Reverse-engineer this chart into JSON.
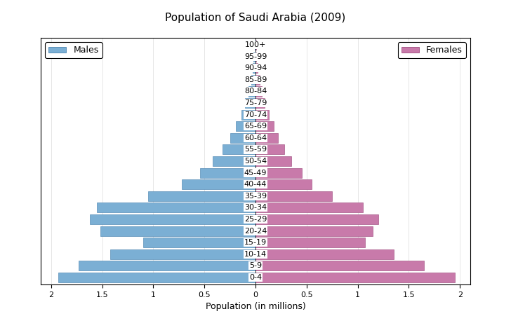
{
  "title": "Population of Saudi Arabia (2009)",
  "xlabel": "Population (in millions)",
  "age_groups": [
    "0-4",
    "5-9",
    "10-14",
    "15-19",
    "20-24",
    "25-29",
    "30-34",
    "35-39",
    "40-44",
    "45-49",
    "50-54",
    "55-59",
    "60-64",
    "65-69",
    "70-74",
    "75-79",
    "80-84",
    "85-89",
    "90-94",
    "95-99",
    "100+"
  ],
  "males": [
    1.93,
    1.73,
    1.42,
    1.1,
    1.52,
    1.62,
    1.55,
    1.05,
    0.72,
    0.54,
    0.42,
    0.32,
    0.25,
    0.19,
    0.14,
    0.1,
    0.07,
    0.04,
    0.03,
    0.02,
    0.01
  ],
  "females": [
    1.95,
    1.65,
    1.35,
    1.07,
    1.15,
    1.2,
    1.05,
    0.75,
    0.55,
    0.45,
    0.35,
    0.28,
    0.22,
    0.18,
    0.13,
    0.09,
    0.06,
    0.04,
    0.02,
    0.01,
    0.01
  ],
  "male_color": "#7bafd4",
  "female_color": "#c87aaa",
  "male_edge_color": "#5a8fb8",
  "female_edge_color": "#a85a8a",
  "xlim": 2.1,
  "title_fontsize": 11,
  "label_fontsize": 9,
  "tick_fontsize": 8
}
